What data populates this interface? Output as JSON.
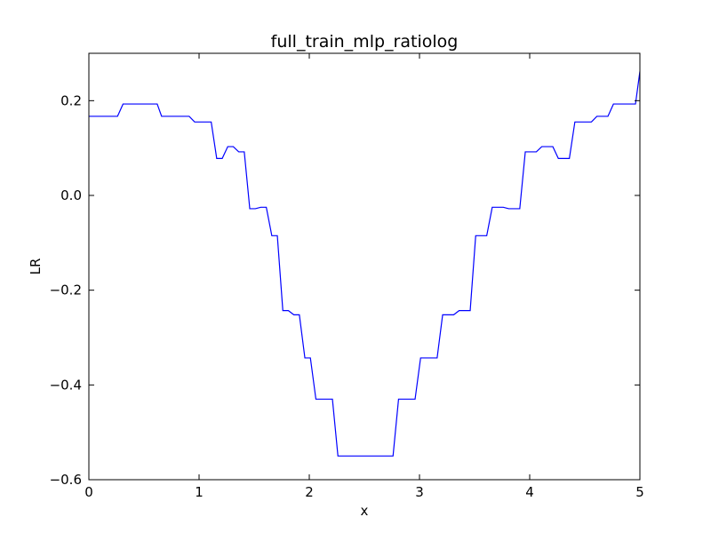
{
  "chart_data": {
    "type": "line",
    "title": "full_train_mlp_ratiolog",
    "xlabel": "x",
    "ylabel": "LR",
    "xlim": [
      0,
      5
    ],
    "ylim": [
      -0.6,
      0.3
    ],
    "x_ticks": [
      0,
      1,
      2,
      3,
      4,
      5
    ],
    "x_tick_labels": [
      "0",
      "1",
      "2",
      "3",
      "4",
      "5"
    ],
    "y_ticks": [
      -0.6,
      -0.4,
      -0.2,
      0.0,
      0.2
    ],
    "y_tick_labels": [
      "−0.6",
      "−0.4",
      "−0.2",
      "0.0",
      "0.2"
    ],
    "grid": false,
    "line_color": "#0000ff",
    "series": [
      {
        "x": [
          0,
          0.26,
          0.31,
          0.62,
          0.66,
          0.91,
          0.96,
          1.11,
          1.16,
          1.21,
          1.26,
          1.31,
          1.36,
          1.41,
          1.46,
          1.51,
          1.56,
          1.61,
          1.66,
          1.71,
          1.76,
          1.81,
          1.86,
          1.91,
          1.96,
          2.01,
          2.06,
          2.11,
          2.16,
          2.21,
          2.26,
          2.31,
          2.36,
          2.41,
          2.46,
          2.51,
          2.56,
          2.61,
          2.66,
          2.71,
          2.76,
          2.81,
          2.86,
          2.91,
          2.96,
          3.01,
          3.06,
          3.11,
          3.16,
          3.21,
          3.26,
          3.31,
          3.36,
          3.41,
          3.46,
          3.51,
          3.56,
          3.61,
          3.66,
          3.71,
          3.76,
          3.81,
          3.86,
          3.91,
          3.96,
          4.01,
          4.06,
          4.11,
          4.16,
          4.21,
          4.26,
          4.31,
          4.36,
          4.41,
          4.46,
          4.51,
          4.56,
          4.61,
          4.66,
          4.71,
          4.76,
          4.81,
          4.86,
          4.91,
          4.96,
          5.0
        ],
        "values": [
          0.167,
          0.167,
          0.193,
          0.193,
          0.167,
          0.167,
          0.155,
          0.155,
          0.078,
          0.078,
          0.103,
          0.103,
          0.092,
          0.092,
          -0.028,
          -0.028,
          -0.025,
          -0.025,
          -0.085,
          -0.085,
          -0.243,
          -0.243,
          -0.252,
          -0.252,
          -0.343,
          -0.343,
          -0.43,
          -0.43,
          -0.43,
          -0.43,
          -0.55,
          -0.55,
          -0.55,
          -0.55,
          -0.55,
          -0.55,
          -0.55,
          -0.55,
          -0.55,
          -0.55,
          -0.55,
          -0.43,
          -0.43,
          -0.43,
          -0.43,
          -0.343,
          -0.343,
          -0.343,
          -0.343,
          -0.252,
          -0.252,
          -0.252,
          -0.243,
          -0.243,
          -0.243,
          -0.085,
          -0.085,
          -0.085,
          -0.025,
          -0.025,
          -0.025,
          -0.028,
          -0.028,
          -0.028,
          0.092,
          0.092,
          0.092,
          0.103,
          0.103,
          0.103,
          0.078,
          0.078,
          0.078,
          0.155,
          0.155,
          0.155,
          0.155,
          0.167,
          0.167,
          0.167,
          0.193,
          0.193,
          0.193,
          0.193,
          0.193,
          0.262
        ]
      }
    ]
  }
}
